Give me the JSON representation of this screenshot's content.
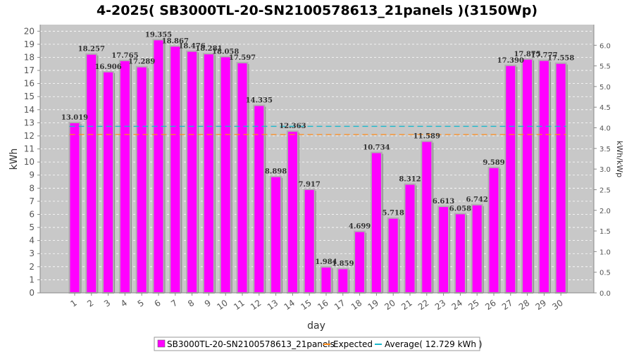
{
  "chart_data": {
    "type": "bar",
    "title": "4-2025( SB3000TL-20-SN2100578613_21panels )(3150Wp)",
    "xlabel": "day",
    "ylabel": "kWh",
    "ylabel_right": "kWh/kWp",
    "ylim": [
      0,
      20.5
    ],
    "ylim_right": [
      0,
      6.5
    ],
    "y_ticks": [
      0,
      1,
      2,
      3,
      4,
      5,
      6,
      7,
      8,
      9,
      10,
      11,
      12,
      13,
      14,
      15,
      16,
      17,
      18,
      19,
      20
    ],
    "y_ticks_right": [
      "0.0",
      "0.5",
      "1.0",
      "1.5",
      "2.0",
      "2.5",
      "3.0",
      "3.5",
      "4.0",
      "4.5",
      "5.0",
      "5.5",
      "6.0"
    ],
    "grid": true,
    "legend_position": "bottom",
    "categories": [
      "1",
      "2",
      "3",
      "4",
      "5",
      "6",
      "7",
      "8",
      "9",
      "10",
      "11",
      "12",
      "13",
      "14",
      "15",
      "16",
      "17",
      "18",
      "19",
      "20",
      "21",
      "22",
      "23",
      "24",
      "25",
      "26",
      "27",
      "28",
      "29",
      "30"
    ],
    "series": [
      {
        "name": "SB3000TL-20-SN2100578613_21panels",
        "color": "#ff00ff",
        "values": [
          13.019,
          18.257,
          16.906,
          17.765,
          17.289,
          19.355,
          18.867,
          18.476,
          18.281,
          18.058,
          17.597,
          14.335,
          8.898,
          12.363,
          7.917,
          1.984,
          1.859,
          4.699,
          10.734,
          5.718,
          8.312,
          11.589,
          6.613,
          6.058,
          6.742,
          9.589,
          17.39,
          17.875,
          17.777,
          17.558
        ],
        "labels": [
          "13.019",
          "18.257",
          "16.906",
          "17.765",
          "17.289",
          "19.355",
          "18.867",
          "18.476",
          "18.281",
          "18.058",
          "17.597",
          "14.335",
          "8.898",
          "12.363",
          "7.917",
          "1.984",
          "1.859",
          "4.699",
          "10.734",
          "5.718",
          "8.312",
          "11.589",
          "6.613",
          "6.058",
          "6.742",
          "9.589",
          "17.390",
          "17.875",
          "17.777",
          "17.558"
        ]
      }
    ],
    "reference_lines": [
      {
        "name": "Expected",
        "value": 12.1,
        "color": "#ff8c1a",
        "style": "dashed"
      },
      {
        "name": "Average( 12.729 kWh )",
        "value": 12.729,
        "color": "#1ab8cc",
        "style": "dashed"
      }
    ],
    "legend": [
      {
        "label": "SB3000TL-20-SN2100578613_21panels",
        "color": "#ff00ff",
        "kind": "box"
      },
      {
        "label": "Expected",
        "color": "#ff8c1a",
        "kind": "line"
      },
      {
        "label": "Average( 12.729 kWh )",
        "color": "#1ab8cc",
        "kind": "line"
      }
    ]
  }
}
